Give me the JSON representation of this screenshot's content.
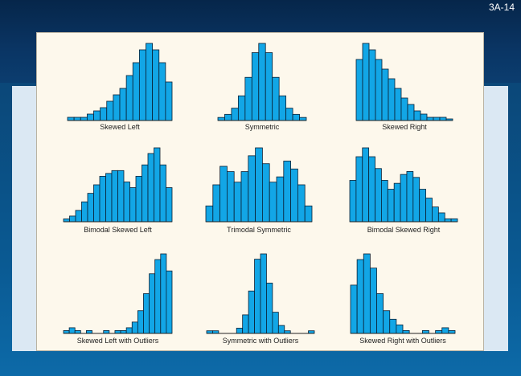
{
  "slide": {
    "number": "3A-14"
  },
  "colors": {
    "bar_fill": "#12a6e6",
    "bar_stroke": "#0a1f33",
    "axis": "#222222"
  },
  "chart_data": [
    {
      "type": "bar",
      "title": "Skewed Left",
      "values": [
        1,
        1,
        1,
        2,
        3,
        4,
        6,
        8,
        10,
        14,
        18,
        22,
        24,
        22,
        18,
        12
      ]
    },
    {
      "type": "bar",
      "title": "Symmetric",
      "values": [
        1,
        2,
        4,
        8,
        14,
        22,
        25,
        22,
        14,
        8,
        4,
        2,
        1
      ]
    },
    {
      "type": "bar",
      "title": "Skewed Right",
      "values": [
        19,
        24,
        22,
        19,
        16,
        13,
        10,
        7,
        5,
        3,
        2,
        1,
        1,
        1,
        0.5
      ]
    },
    {
      "type": "bar",
      "title": "Bimodal Skewed Left",
      "values": [
        1,
        2,
        4,
        7,
        10,
        13,
        16,
        17,
        18,
        18,
        14,
        12,
        16,
        20,
        24,
        26,
        20,
        12
      ]
    },
    {
      "type": "bar",
      "title": "Trimodal Symmetric",
      "values": [
        6,
        14,
        21,
        19,
        15,
        19,
        25,
        28,
        22,
        15,
        17,
        23,
        20,
        14,
        6
      ]
    },
    {
      "type": "bar",
      "title": "Bimodal Skewed Right",
      "values": [
        14,
        22,
        25,
        22,
        18,
        14,
        11,
        13,
        16,
        17,
        15,
        11,
        8,
        5,
        3,
        1,
        1
      ]
    },
    {
      "type": "bar",
      "title": "Skewed Left with Outliers",
      "values": [
        1,
        2,
        1,
        0,
        1,
        0,
        0,
        1,
        0,
        1,
        1,
        2,
        4,
        8,
        14,
        21,
        26,
        28,
        22
      ]
    },
    {
      "type": "bar",
      "title": "Symmetric with Outliers",
      "values": [
        1,
        1,
        0,
        0,
        0,
        2,
        7,
        16,
        28,
        30,
        19,
        8,
        3,
        1,
        0,
        0,
        0,
        1
      ]
    },
    {
      "type": "bar",
      "title": "Skewed Right with Outliers",
      "values": [
        17,
        26,
        28,
        23,
        14,
        8,
        5,
        3,
        1,
        0,
        0,
        1,
        0,
        1,
        2,
        1
      ]
    }
  ]
}
